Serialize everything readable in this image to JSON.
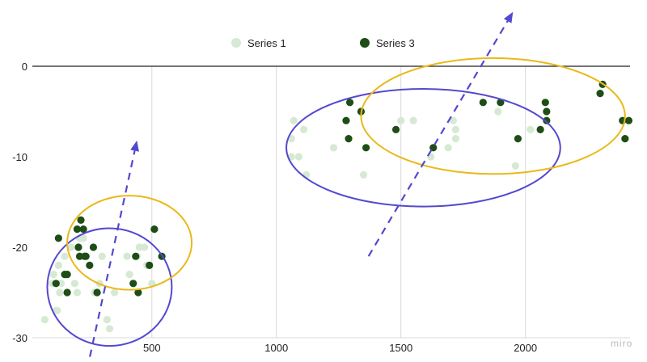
{
  "chart_data": {
    "type": "scatter",
    "title": "",
    "xlabel": "",
    "ylabel": "",
    "xlim": [
      20,
      2420
    ],
    "ylim": [
      -30,
      0
    ],
    "x_ticks": [
      500,
      1000,
      1500,
      2000
    ],
    "y_ticks": [
      0,
      -10,
      -20,
      -30
    ],
    "grid": {
      "vertical": true,
      "horizontal": false,
      "zero_line": true
    },
    "legend": {
      "placement": "top-center"
    },
    "series": [
      {
        "name": "Series 1",
        "color": "#d6e9d3",
        "points": [
          [
            100,
            -24
          ],
          [
            105,
            -23
          ],
          [
            115,
            -27
          ],
          [
            120,
            -27
          ],
          [
            125,
            -22
          ],
          [
            130,
            -25
          ],
          [
            135,
            -24
          ],
          [
            150,
            -21
          ],
          [
            160,
            -23
          ],
          [
            175,
            -20
          ],
          [
            190,
            -24
          ],
          [
            200,
            -25
          ],
          [
            210,
            -19
          ],
          [
            225,
            -19
          ],
          [
            235,
            -21
          ],
          [
            270,
            -25
          ],
          [
            290,
            -24
          ],
          [
            300,
            -21
          ],
          [
            320,
            -28
          ],
          [
            330,
            -29
          ],
          [
            350,
            -25
          ],
          [
            400,
            -21
          ],
          [
            410,
            -23
          ],
          [
            440,
            -21
          ],
          [
            450,
            -20
          ],
          [
            470,
            -20
          ],
          [
            480,
            -22
          ],
          [
            500,
            -24
          ],
          [
            70,
            -28
          ],
          [
            1060,
            -8
          ],
          [
            1060,
            -10
          ],
          [
            1070,
            -6
          ],
          [
            1090,
            -10
          ],
          [
            1110,
            -7
          ],
          [
            1120,
            -12
          ],
          [
            1230,
            -9
          ],
          [
            1350,
            -12
          ],
          [
            1500,
            -6
          ],
          [
            1550,
            -6
          ],
          [
            1620,
            -10
          ],
          [
            1690,
            -9
          ],
          [
            1710,
            -6
          ],
          [
            1720,
            -7
          ],
          [
            1720,
            -8
          ],
          [
            1890,
            -5
          ],
          [
            1960,
            -11
          ],
          [
            2020,
            -7
          ]
        ]
      },
      {
        "name": "Series 3",
        "color": "#1e4d16",
        "points": [
          [
            115,
            -24
          ],
          [
            125,
            -19
          ],
          [
            150,
            -23
          ],
          [
            160,
            -23
          ],
          [
            160,
            -25
          ],
          [
            200,
            -18
          ],
          [
            205,
            -20
          ],
          [
            210,
            -21
          ],
          [
            215,
            -17
          ],
          [
            225,
            -18
          ],
          [
            230,
            -21
          ],
          [
            235,
            -21
          ],
          [
            250,
            -22
          ],
          [
            265,
            -20
          ],
          [
            280,
            -25
          ],
          [
            425,
            -24
          ],
          [
            435,
            -21
          ],
          [
            445,
            -25
          ],
          [
            490,
            -22
          ],
          [
            510,
            -18
          ],
          [
            540,
            -21
          ],
          [
            1280,
            -6
          ],
          [
            1290,
            -8
          ],
          [
            1295,
            -4
          ],
          [
            1340,
            -5
          ],
          [
            1360,
            -9
          ],
          [
            1480,
            -7
          ],
          [
            1630,
            -9
          ],
          [
            1830,
            -4
          ],
          [
            1900,
            -4
          ],
          [
            1970,
            -8
          ],
          [
            2060,
            -7
          ],
          [
            2080,
            -4
          ],
          [
            2085,
            -5
          ],
          [
            2085,
            -6
          ],
          [
            2300,
            -3
          ],
          [
            2310,
            -2
          ],
          [
            2390,
            -6
          ],
          [
            2400,
            -8
          ],
          [
            2415,
            -6
          ]
        ]
      }
    ],
    "annotations": {
      "ellipses": [
        {
          "color": "#5448cf",
          "cx": 330,
          "cy": -24.4,
          "rx": 250,
          "ry": 6.5
        },
        {
          "color": "#e9b91a",
          "cx": 410,
          "cy": -19.5,
          "rx": 250,
          "ry": 5.2
        },
        {
          "color": "#5448cf",
          "cx": 1590,
          "cy": -9,
          "rx": 550,
          "ry": 6.5
        },
        {
          "color": "#e9b91a",
          "cx": 1870,
          "cy": -5.5,
          "rx": 530,
          "ry": 6.4
        }
      ],
      "arrows": [
        {
          "color": "#5448cf",
          "from": [
            240,
            -33.5
          ],
          "to": [
            440,
            -8.2
          ]
        },
        {
          "color": "#5448cf",
          "from": [
            1370,
            -21
          ],
          "to": [
            1950,
            6
          ]
        }
      ]
    }
  },
  "watermark": "miro"
}
